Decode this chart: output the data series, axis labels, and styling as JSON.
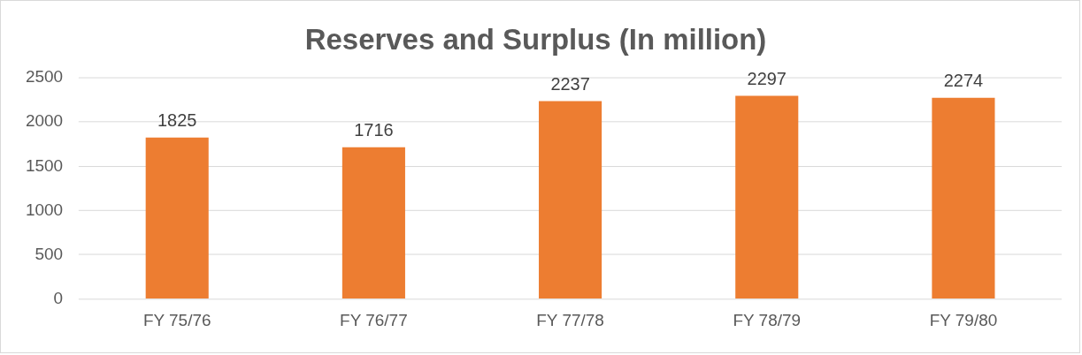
{
  "chart_data": {
    "type": "bar",
    "title": "Reserves and Surplus (In million)",
    "categories": [
      "FY 75/76",
      "FY 76/77",
      "FY 77/78",
      "FY 78/79",
      "FY 79/80"
    ],
    "values": [
      1825,
      1716,
      2237,
      2297,
      2274
    ],
    "color": "#ed7d31",
    "ylim": [
      0,
      2500
    ],
    "yticks": [
      0,
      500,
      1000,
      1500,
      2000,
      2500
    ],
    "grid": "y",
    "data_labels": true,
    "legend": false
  }
}
